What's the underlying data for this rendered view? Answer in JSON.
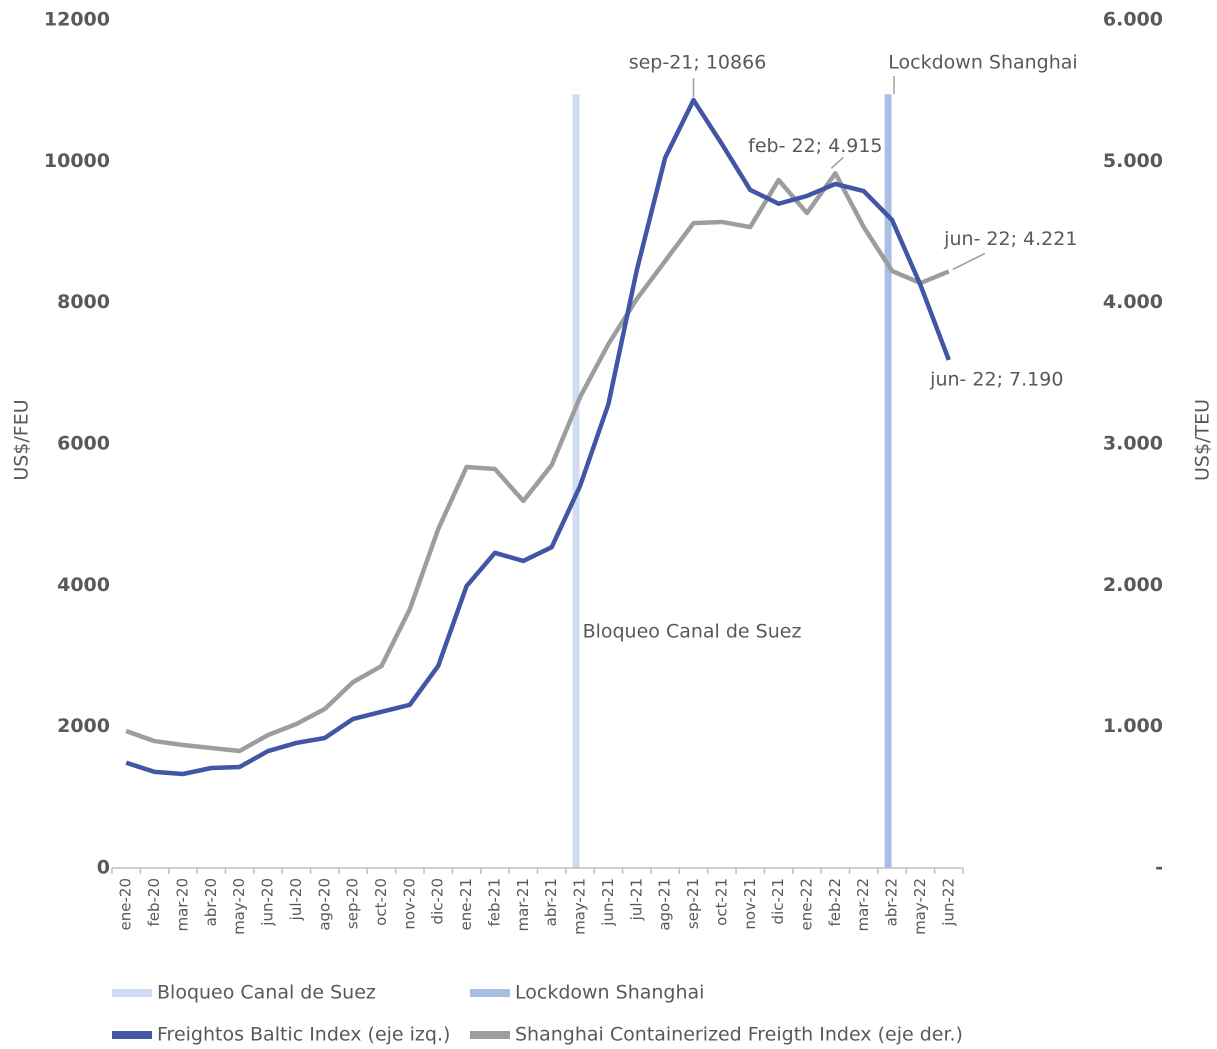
{
  "chart_data": {
    "type": "line",
    "y_label": "US$/FEU",
    "y2_label": "US$/TEU",
    "categories": [
      "ene-20",
      "feb-20",
      "mar-20",
      "abr-20",
      "may-20",
      "jun-20",
      "jul-20",
      "ago-20",
      "sep-20",
      "oct-20",
      "nov-20",
      "dic-20",
      "ene-21",
      "feb-21",
      "mar-21",
      "abr-21",
      "may-21",
      "jun-21",
      "jul-21",
      "ago-21",
      "sep-21",
      "oct-21",
      "nov-21",
      "dic-21",
      "ene-22",
      "feb-22",
      "mar-22",
      "abr-22",
      "may-22",
      "jun-22"
    ],
    "ylim": [
      0,
      12000
    ],
    "yticks": [
      0,
      2000,
      4000,
      6000,
      8000,
      10000,
      12000
    ],
    "y2lim": [
      0,
      6000
    ],
    "y2ticks": [
      {
        "value": 0,
        "label": "-"
      },
      {
        "value": 1000,
        "label": "1.000"
      },
      {
        "value": 2000,
        "label": "2.000"
      },
      {
        "value": 3000,
        "label": "3.000"
      },
      {
        "value": 4000,
        "label": "4.000"
      },
      {
        "value": 5000,
        "label": "5.000"
      },
      {
        "value": 6000,
        "label": "6.000"
      }
    ],
    "events": [
      {
        "name": "Bloqueo Canal de Suez",
        "label": "Bloqueo Canal de Suez",
        "color": "#cfdcf1",
        "category": "may-21",
        "value": 10950
      },
      {
        "name": "Lockdown Shanghai",
        "label": "Lockdown Shanghai",
        "color": "#a9bfe4",
        "category": "abr-22",
        "value": 10950
      }
    ],
    "series": [
      {
        "name": "Freightos Baltic Index (eje izq.)",
        "color": "#4356a5",
        "values": [
          1490,
          1360,
          1330,
          1415,
          1430,
          1655,
          1770,
          1840,
          2110,
          2210,
          2310,
          2860,
          3990,
          4460,
          4345,
          4540,
          5405,
          6565,
          8460,
          10050,
          10866,
          10245,
          9595,
          9400,
          9510,
          9680,
          9580,
          9170,
          8250,
          7190
        ],
        "value_labels": [
          null,
          null,
          null,
          null,
          null,
          null,
          null,
          null,
          null,
          null,
          null,
          null,
          null,
          null,
          null,
          null,
          null,
          null,
          null,
          null,
          "sep-21; 10866",
          null,
          null,
          null,
          null,
          null,
          null,
          null,
          null,
          "jun- 22; 7.190"
        ]
      },
      {
        "name": "Shanghai Containerized Freigth Index (eje der.)",
        "color": "#9d9d9d",
        "axis": "y2",
        "values": [
          969,
          898,
          870,
          849,
          828,
          941,
          1019,
          1125,
          1316,
          1429,
          1832,
          2398,
          2837,
          2823,
          2597,
          2851,
          3332,
          3707,
          4026,
          4295,
          4563,
          4571,
          4535,
          4868,
          4634,
          4915,
          4535,
          4224,
          4139,
          4221
        ],
        "value_labels": [
          null,
          null,
          null,
          null,
          null,
          null,
          null,
          null,
          null,
          null,
          null,
          null,
          null,
          null,
          null,
          null,
          null,
          null,
          null,
          null,
          null,
          null,
          null,
          null,
          null,
          "feb- 22; 4.915",
          null,
          null,
          null,
          "jun- 22; 4.221"
        ]
      }
    ]
  }
}
